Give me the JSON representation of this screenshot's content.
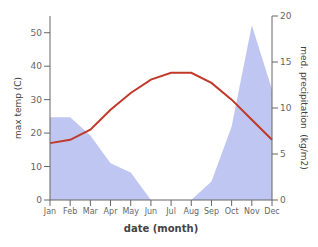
{
  "chart_data": {
    "type": "line",
    "categories": [
      "Jan",
      "Feb",
      "Mar",
      "Apr",
      "May",
      "Jun",
      "Jul",
      "Aug",
      "Sep",
      "Oct",
      "Nov",
      "Dec"
    ],
    "series": [
      {
        "type": "area",
        "color": "#b3bcee",
        "axis": "y2",
        "values": [
          9,
          9,
          7,
          4,
          3,
          0,
          0,
          0,
          2,
          8,
          19,
          12
        ]
      },
      {
        "type": "line",
        "color": "#c0392b",
        "values": [
          17,
          18,
          21,
          27,
          32,
          36,
          38,
          38,
          35,
          30,
          24,
          18
        ]
      }
    ],
    "xlabel": "date (month)",
    "ylabel": "max temp (C)",
    "y2label": "med. precipitation  (kg/m2)",
    "ylim": [
      0,
      55
    ],
    "yticks": [
      0,
      10,
      20,
      30,
      40,
      50
    ],
    "y2lim": [
      0,
      20
    ],
    "y2ticks": [
      0,
      5,
      10,
      15,
      20
    ]
  }
}
